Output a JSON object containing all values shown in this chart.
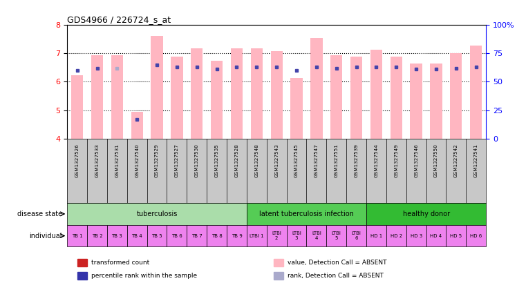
{
  "title": "GDS4966 / 226724_s_at",
  "samples": [
    "GSM1327526",
    "GSM1327533",
    "GSM1327531",
    "GSM1327540",
    "GSM1327529",
    "GSM1327527",
    "GSM1327530",
    "GSM1327535",
    "GSM1327528",
    "GSM1327548",
    "GSM1327543",
    "GSM1327545",
    "GSM1327547",
    "GSM1327551",
    "GSM1327539",
    "GSM1327544",
    "GSM1327549",
    "GSM1327546",
    "GSM1327550",
    "GSM1327542",
    "GSM1327541"
  ],
  "bar_values": [
    6.22,
    6.92,
    6.92,
    4.94,
    7.62,
    6.88,
    7.18,
    6.75,
    7.18,
    7.18,
    7.08,
    6.14,
    7.55,
    6.92,
    6.88,
    7.12,
    6.88,
    6.65,
    6.65,
    7.0,
    7.28
  ],
  "rank_values": [
    60,
    62,
    62,
    17,
    65,
    63,
    63,
    61,
    63,
    63,
    63,
    60,
    63,
    62,
    63,
    63,
    63,
    61,
    61,
    62,
    63
  ],
  "absent_bar": [
    true,
    false,
    false,
    false,
    false,
    false,
    false,
    false,
    false,
    false,
    false,
    false,
    false,
    false,
    false,
    false,
    false,
    false,
    false,
    false,
    false
  ],
  "absent_rank": [
    false,
    false,
    true,
    false,
    false,
    false,
    false,
    false,
    false,
    false,
    false,
    false,
    false,
    false,
    false,
    false,
    false,
    false,
    false,
    false,
    false
  ],
  "groups": [
    {
      "label": "tuberculosis",
      "start": 0,
      "end": 9,
      "color": "#AADDAA"
    },
    {
      "label": "latent tuberculosis infection",
      "start": 9,
      "end": 15,
      "color": "#55CC55"
    },
    {
      "label": "healthy donor",
      "start": 15,
      "end": 21,
      "color": "#33BB33"
    }
  ],
  "individual_labels": [
    "TB 1",
    "TB 2",
    "TB 3",
    "TB 4",
    "TB 5",
    "TB 6",
    "TB 7",
    "TB 8",
    "TB 9",
    "LTBI 1",
    "LTBI\n2",
    "LTBI\n3",
    "LTBI\n4",
    "LTBI\n5",
    "LTBI\n6",
    "HD 1",
    "HD 2",
    "HD 3",
    "HD 4",
    "HD 5",
    "HD 6"
  ],
  "individual_colors": [
    "#EE82EE",
    "#EE82EE",
    "#EE82EE",
    "#EE82EE",
    "#EE82EE",
    "#EE82EE",
    "#EE82EE",
    "#EE82EE",
    "#EE82EE",
    "#EE82EE",
    "#EE82EE",
    "#EE82EE",
    "#EE82EE",
    "#EE82EE",
    "#EE82EE",
    "#EE82EE",
    "#EE82EE",
    "#EE82EE",
    "#EE82EE",
    "#EE82EE",
    "#EE82EE"
  ],
  "ylim": [
    4,
    8
  ],
  "yticks": [
    4,
    5,
    6,
    7,
    8
  ],
  "right_yticks": [
    0,
    25,
    50,
    75,
    100
  ],
  "bar_color": "#FFB6C1",
  "rank_color_present": "#4444AA",
  "rank_color_absent": "#AAAACC",
  "background_color": "#ffffff",
  "gsm_bg": "#C8C8C8"
}
